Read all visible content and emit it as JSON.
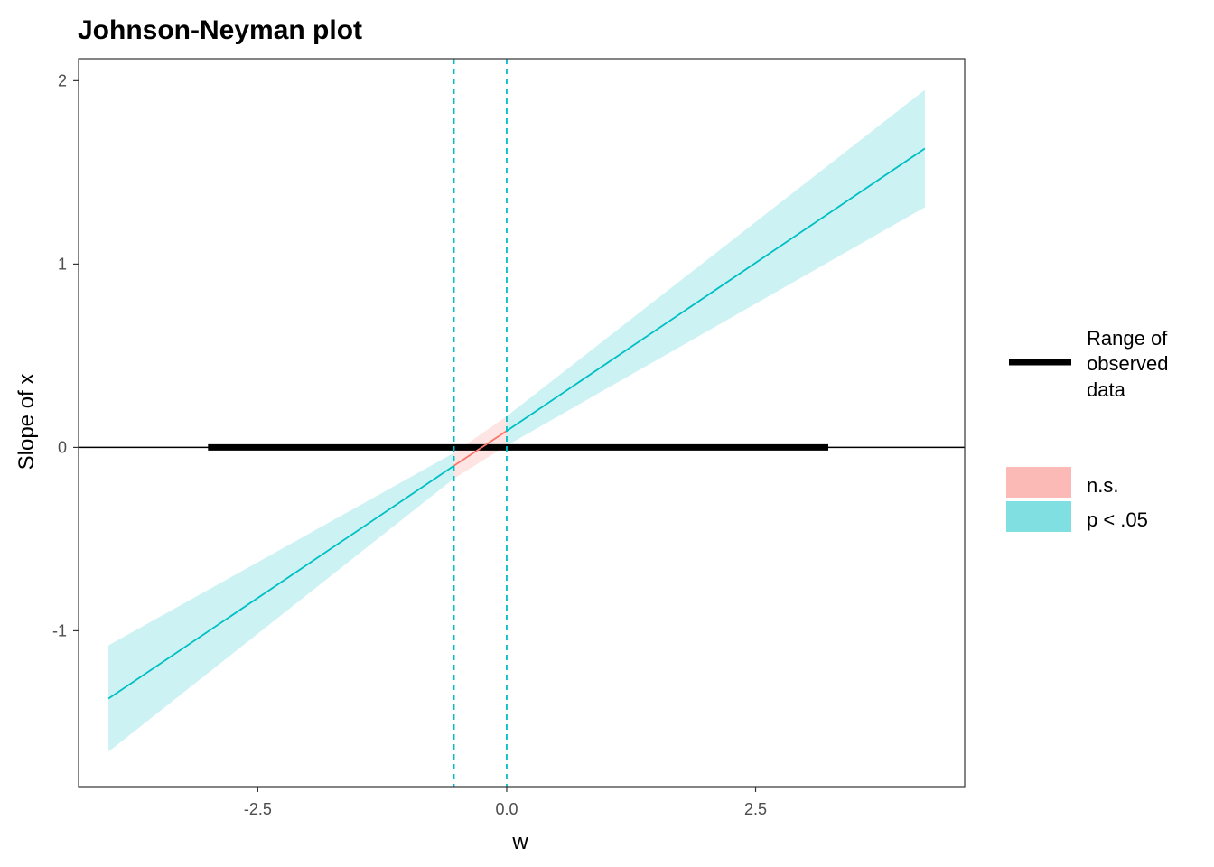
{
  "chart_data": {
    "type": "line",
    "title": "Johnson-Neyman plot",
    "xlabel": "w",
    "ylabel": "Slope of x",
    "xlim": [
      -4.3,
      4.6
    ],
    "ylim": [
      -1.85,
      2.12
    ],
    "x_ticks": [
      {
        "value": -2.5,
        "label": "-2.5"
      },
      {
        "value": 0.0,
        "label": "0.0"
      },
      {
        "value": 2.5,
        "label": "2.5"
      }
    ],
    "y_ticks": [
      {
        "value": -1,
        "label": "-1"
      },
      {
        "value": 0,
        "label": "0"
      },
      {
        "value": 1,
        "label": "1"
      },
      {
        "value": 2,
        "label": "2"
      }
    ],
    "slope_line": {
      "x": [
        -4.0,
        -0.53,
        0.0,
        4.2
      ],
      "y": [
        -1.37,
        -0.1,
        0.09,
        1.63
      ]
    },
    "confidence_band": {
      "x": [
        -4.0,
        -0.53,
        0.0,
        4.2
      ],
      "lower": [
        -1.66,
        -0.17,
        0.01,
        1.31
      ],
      "upper": [
        -1.08,
        -0.03,
        0.17,
        1.95
      ]
    },
    "significance_bounds": [
      -0.53,
      0.0
    ],
    "observed_range": [
      -3.0,
      3.23
    ],
    "reference_line_y": 0,
    "grid": false,
    "legend_position": "right",
    "legend_range": {
      "label_lines": [
        "Range of",
        "observed",
        "data"
      ],
      "color": "#000000"
    },
    "legend_fill": [
      {
        "label": "n.s.",
        "color": "#F8766D"
      },
      {
        "label": "p < .05",
        "color": "#00BFC4"
      }
    ]
  }
}
